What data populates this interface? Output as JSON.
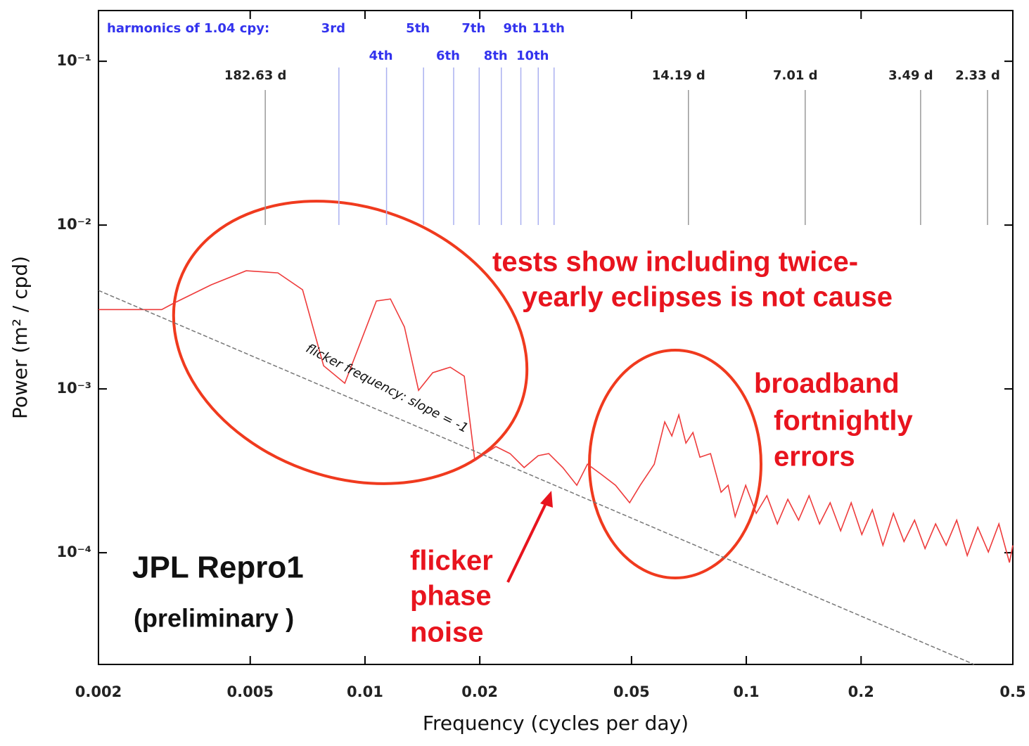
{
  "chart_data": {
    "type": "line",
    "xlabel": "Frequency (cycles per day)",
    "ylabel": "Power (m² / cpd)",
    "xscale": "log",
    "yscale": "log",
    "xlim": [
      0.002,
      0.5
    ],
    "ylim": [
      2.08e-05,
      0.204
    ],
    "xticks": [
      0.002,
      0.005,
      0.01,
      0.02,
      0.05,
      0.1,
      0.2,
      0.5
    ],
    "yticks": [
      {
        "value": 0.1,
        "label": "10⁻¹"
      },
      {
        "value": 0.01,
        "label": "10⁻²"
      },
      {
        "value": 0.001,
        "label": "10⁻³"
      },
      {
        "value": 0.0001,
        "label": "10⁻⁴"
      }
    ],
    "series": [
      {
        "color": "#ee3b3b",
        "x": [
          0.002,
          0.00293,
          0.00313,
          0.00395,
          0.00488,
          0.00591,
          0.00686,
          0.00779,
          0.00885,
          0.01071,
          0.01166,
          0.01269,
          0.01382,
          0.01505,
          0.01673,
          0.01821,
          0.01941,
          0.02069,
          0.02205,
          0.02401,
          0.02614,
          0.02846,
          0.03033,
          0.03302,
          0.03594,
          0.03831,
          0.04171,
          0.04541,
          0.04943,
          0.05269,
          0.05737,
          0.06112,
          0.06378,
          0.06653,
          0.06943,
          0.07244,
          0.07556,
          0.08058,
          0.08586,
          0.08961,
          0.09348,
          0.09963,
          0.1062,
          0.1132,
          0.1206,
          0.1285,
          0.1371,
          0.1461,
          0.1556,
          0.1659,
          0.1768,
          0.1884,
          0.2009,
          0.2141,
          0.2282,
          0.2431,
          0.2592,
          0.2762,
          0.2943,
          0.3137,
          0.3343,
          0.3563,
          0.3797,
          0.4047,
          0.4313,
          0.4597,
          0.4899,
          0.5
        ],
        "values": [
          0.00305,
          0.00305,
          0.00331,
          0.00432,
          0.00526,
          0.00511,
          0.00403,
          0.001385,
          0.001082,
          0.00344,
          0.00354,
          0.00239,
          0.00098,
          0.001256,
          0.001358,
          0.001195,
          0.000365,
          0.000403,
          0.000445,
          0.000403,
          0.000331,
          0.000391,
          0.000403,
          0.000331,
          0.000258,
          0.000347,
          0.0003,
          0.000258,
          0.000202,
          0.000258,
          0.000347,
          0.000629,
          0.000516,
          0.000694,
          0.000467,
          0.000542,
          0.000383,
          0.000403,
          0.000234,
          0.000258,
          0.000166,
          0.000258,
          0.000174,
          0.000223,
          0.00015,
          0.000212,
          0.000158,
          0.000223,
          0.00015,
          0.000202,
          0.000136,
          0.000202,
          0.000129,
          0.000183,
          0.000111,
          0.000174,
          0.000117,
          0.000158,
          0.000106,
          0.00015,
          0.000111,
          0.000158,
          9.61e-05,
          0.000143,
          0.000101,
          0.00015,
          8.71e-05,
          0.000111
        ]
      },
      {
        "color": "#777777",
        "dashed": true,
        "x": [
          0.002,
          0.396
        ],
        "values": [
          0.00399,
          2.08e-05
        ]
      }
    ],
    "reference_label": "flicker frequency: slope = -1",
    "period_lines": {
      "color": "#999999",
      "labels": [
        "182.63 d",
        "14.19 d",
        "7.01 d",
        "3.49 d",
        "2.33 d"
      ],
      "x": [
        0.005476,
        0.0705,
        0.1427,
        0.2865,
        0.4292
      ]
    },
    "harmonics": {
      "title": "harmonics of 1.04 cpy:",
      "color": "#3333ee",
      "line_color": "#aab0f0",
      "labels": [
        "3rd",
        "4th",
        "5th",
        "6th",
        "7th",
        "8th",
        "9th",
        "10th",
        "11th"
      ],
      "x": [
        0.008542,
        0.01139,
        0.01424,
        0.01708,
        0.01993,
        0.02278,
        0.02563,
        0.02847,
        0.03132
      ]
    },
    "annotations": [
      [
        "tests show including twice-",
        "yearly eclipses is not cause"
      ],
      [
        "broadband",
        "fortnightly",
        "errors"
      ],
      [
        "flicker",
        "phase",
        "noise"
      ]
    ],
    "label": [
      "JPL Repro1",
      "(preliminary )"
    ]
  }
}
